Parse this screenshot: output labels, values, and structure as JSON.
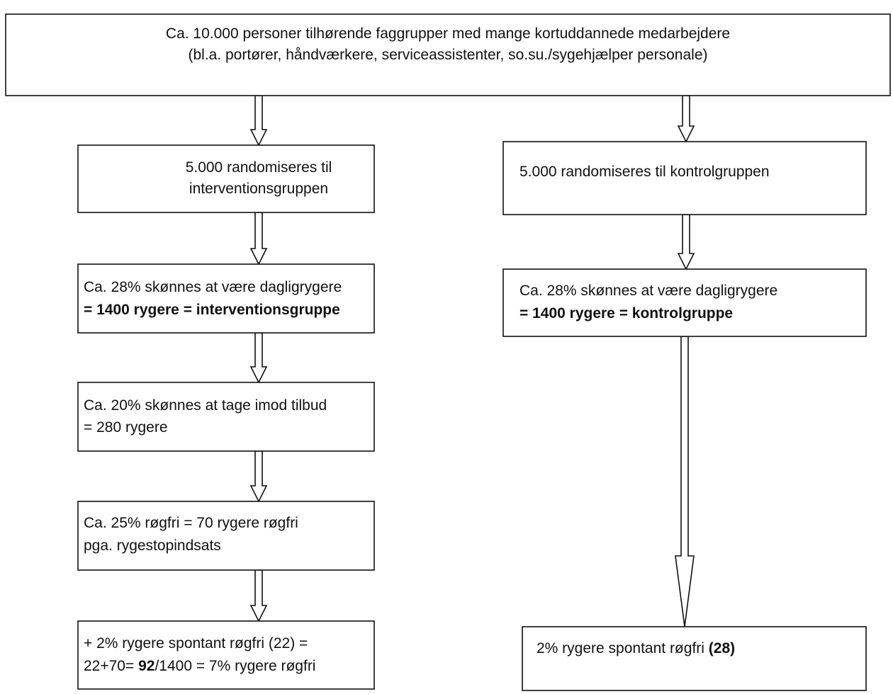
{
  "nodes": [
    {
      "lines": [
        "Ca. 10.000 personer tilhørende faggrupper med mange kortuddannede medarbejdere",
        "(bl.a. portører, håndværkere, serviceassistenter, so.su./sygehjælper personale)"
      ]
    },
    {
      "lines": [
        "5.000 randomiseres til",
        "interventionsgruppen"
      ]
    },
    {
      "lines": [
        "Ca. 28% skønnes at være dagligrygere",
        "= 1400 rygere = interventionsgruppe"
      ]
    },
    {
      "lines": [
        "Ca. 20% skønnes at tage imod tilbud",
        "= 280 rygere"
      ]
    },
    {
      "lines": [
        "Ca. 25% røgfri = 70 rygere røgfri",
        "pga. rygestopindsats"
      ]
    },
    {
      "lines": [
        "+ 2% rygere spontant røgfri (22) =",
        [
          "22+70= ",
          "92",
          "/1400 = 7% rygere røgfri"
        ]
      ]
    },
    {
      "lines": [
        "5.000 randomiseres til kontrolgruppen"
      ]
    },
    {
      "lines": [
        "Ca. 28% skønnes at være dagligrygere",
        "= 1400 rygere = kontrolgruppe"
      ]
    },
    {
      "lines": [
        [
          "2% rygere spontant røgfri  ",
          "(28)"
        ]
      ]
    }
  ]
}
